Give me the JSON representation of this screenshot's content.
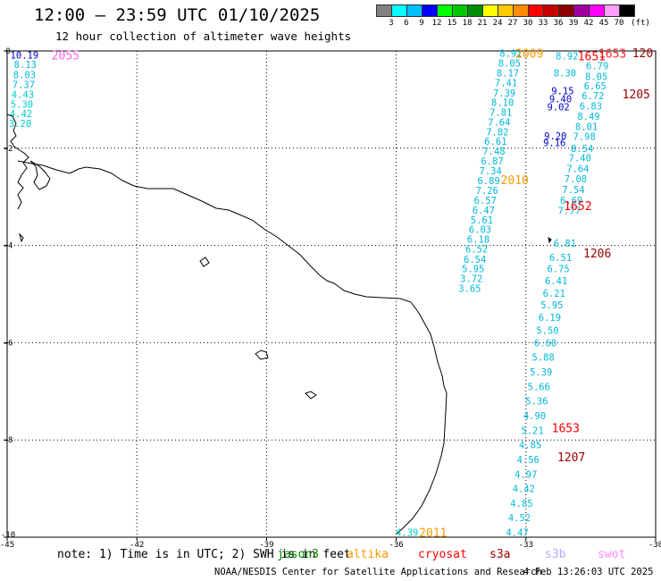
{
  "title": "12:00 – 23:59 UTC 01/10/2025",
  "subtitle": "12 hour collection of altimeter wave heights",
  "legend": {
    "unit": "(ft)",
    "levels": [
      "3",
      "6",
      "9",
      "12",
      "15",
      "18",
      "21",
      "24",
      "27",
      "30",
      "33",
      "36",
      "39",
      "42",
      "45",
      "70"
    ],
    "colors": [
      "#808080",
      "#00ffff",
      "#00bfff",
      "#0000ff",
      "#00ff00",
      "#00c800",
      "#008c00",
      "#ffff00",
      "#ffc800",
      "#ff8c00",
      "#ff0000",
      "#c80000",
      "#8c0000",
      "#a000a0",
      "#ff00ff",
      "#ffa0ff",
      "#000000"
    ]
  },
  "note": "note: 1) Time is in UTC; 2) SWH is in feet",
  "satellites": [
    {
      "name": "jason3",
      "color": "#008800"
    },
    {
      "name": "altika",
      "color": "#ff9900"
    },
    {
      "name": "cryosat",
      "color": "#ff0000"
    },
    {
      "name": "s3a",
      "color": "#990000"
    },
    {
      "name": "s3b",
      "color": "#aaaaff"
    },
    {
      "name": "swot",
      "color": "#ff88ff"
    }
  ],
  "credit": "NOAA/NESDIS Center for Satellite Applications and Research",
  "timestamp": "4 Feb 13:26:03 UTC 2025",
  "chart_data": {
    "type": "scatter",
    "xlim": [
      -45,
      -30
    ],
    "ylim": [
      -10,
      0
    ],
    "x_ticks": [
      -45,
      -42,
      -39,
      -36,
      -33,
      -30
    ],
    "x_tick_labels": [
      "-45",
      "-42",
      "-39",
      "-36",
      "-33",
      "-30"
    ],
    "y_ticks": [
      0,
      -2,
      -4,
      -6,
      -8,
      -10
    ],
    "y_tick_labels": [
      "0",
      "-2",
      "-4",
      "-6",
      "-8",
      "-10"
    ],
    "grid": true,
    "point_labels": [
      {
        "x": -44.6,
        "y": -0.08,
        "text": "10.19",
        "color": "#0000cc"
      },
      {
        "x": -44.58,
        "y": -0.28,
        "text": "8.13",
        "color": "#00b8d8"
      },
      {
        "x": -44.6,
        "y": -0.49,
        "text": "8.03",
        "color": "#00b8d8"
      },
      {
        "x": -44.62,
        "y": -0.69,
        "text": "7.37",
        "color": "#00b8d8"
      },
      {
        "x": -44.64,
        "y": -0.89,
        "text": "4.43",
        "color": "#00cccc"
      },
      {
        "x": -44.66,
        "y": -1.09,
        "text": "5.30",
        "color": "#00cccc"
      },
      {
        "x": -44.68,
        "y": -1.29,
        "text": "4.42",
        "color": "#00cccc"
      },
      {
        "x": -44.7,
        "y": -1.49,
        "text": "3.20",
        "color": "#00cccc"
      },
      {
        "x": -33.35,
        "y": -0.05,
        "text": "8.91",
        "color": "#00b8d8"
      },
      {
        "x": -33.38,
        "y": -0.25,
        "text": "8.05",
        "color": "#00b8d8"
      },
      {
        "x": -33.42,
        "y": -0.45,
        "text": "8.17",
        "color": "#00b8d8"
      },
      {
        "x": -33.46,
        "y": -0.65,
        "text": "7.41",
        "color": "#00b8d8"
      },
      {
        "x": -33.5,
        "y": -0.86,
        "text": "7.39",
        "color": "#00b8d8"
      },
      {
        "x": -33.54,
        "y": -1.06,
        "text": "8.10",
        "color": "#00b8d8"
      },
      {
        "x": -33.58,
        "y": -1.26,
        "text": "7.81",
        "color": "#00b8d8"
      },
      {
        "x": -33.62,
        "y": -1.46,
        "text": "7.64",
        "color": "#00b8d8"
      },
      {
        "x": -33.66,
        "y": -1.66,
        "text": "7.82",
        "color": "#00b8d8"
      },
      {
        "x": -33.7,
        "y": -1.86,
        "text": "6.61",
        "color": "#00b8d8"
      },
      {
        "x": -33.74,
        "y": -2.06,
        "text": "7.48",
        "color": "#00b8d8"
      },
      {
        "x": -33.78,
        "y": -2.26,
        "text": "6.87",
        "color": "#00b8d8"
      },
      {
        "x": -33.82,
        "y": -2.46,
        "text": "7.34",
        "color": "#00b8d8"
      },
      {
        "x": -33.86,
        "y": -2.67,
        "text": "6.89",
        "color": "#00b8d8"
      },
      {
        "x": -33.9,
        "y": -2.87,
        "text": "7.26",
        "color": "#00b8d8"
      },
      {
        "x": -33.94,
        "y": -3.07,
        "text": "6.57",
        "color": "#00b8d8"
      },
      {
        "x": -33.98,
        "y": -3.27,
        "text": "6.47",
        "color": "#00b8d8"
      },
      {
        "x": -34.02,
        "y": -3.47,
        "text": "5.61",
        "color": "#00b8d8"
      },
      {
        "x": -34.06,
        "y": -3.67,
        "text": "6.03",
        "color": "#00b8d8"
      },
      {
        "x": -34.1,
        "y": -3.87,
        "text": "6.18",
        "color": "#00b8d8"
      },
      {
        "x": -34.14,
        "y": -4.07,
        "text": "6.52",
        "color": "#00b8d8"
      },
      {
        "x": -34.18,
        "y": -4.28,
        "text": "6.54",
        "color": "#00b8d8"
      },
      {
        "x": -34.22,
        "y": -4.48,
        "text": "5.95",
        "color": "#00b8d8"
      },
      {
        "x": -34.26,
        "y": -4.68,
        "text": "3.72",
        "color": "#00b8d8"
      },
      {
        "x": -34.3,
        "y": -4.88,
        "text": "3.65",
        "color": "#00b8d8"
      },
      {
        "x": -32.05,
        "y": -0.1,
        "text": "8.92",
        "color": "#00b8d8"
      },
      {
        "x": -32.1,
        "y": -0.45,
        "text": "8.30",
        "color": "#00b8d8"
      },
      {
        "x": -32.15,
        "y": -0.82,
        "text": "9.15",
        "color": "#0000cc"
      },
      {
        "x": -32.2,
        "y": -0.98,
        "text": "9.40",
        "color": "#0000cc"
      },
      {
        "x": -32.25,
        "y": -1.15,
        "text": "9.02",
        "color": "#0000cc"
      },
      {
        "x": -32.32,
        "y": -1.75,
        "text": "9.20",
        "color": "#0000cc"
      },
      {
        "x": -32.34,
        "y": -1.88,
        "text": "9.16",
        "color": "#0000cc"
      },
      {
        "x": -31.35,
        "y": -0.3,
        "text": "6.79",
        "color": "#00b8d8"
      },
      {
        "x": -31.37,
        "y": -0.52,
        "text": "8.05",
        "color": "#00b8d8"
      },
      {
        "x": -31.4,
        "y": -0.72,
        "text": "6.65",
        "color": "#00b8d8"
      },
      {
        "x": -31.45,
        "y": -0.92,
        "text": "6.72",
        "color": "#00b8d8"
      },
      {
        "x": -31.5,
        "y": -1.13,
        "text": "6.83",
        "color": "#00b8d8"
      },
      {
        "x": -31.55,
        "y": -1.34,
        "text": "8.49",
        "color": "#00b8d8"
      },
      {
        "x": -31.6,
        "y": -1.55,
        "text": "8.01",
        "color": "#00b8d8"
      },
      {
        "x": -31.65,
        "y": -1.76,
        "text": "7.98",
        "color": "#00b8d8"
      },
      {
        "x": -31.7,
        "y": -2.0,
        "text": "8.54",
        "color": "#00b8d8"
      },
      {
        "x": -31.75,
        "y": -2.2,
        "text": "7.40",
        "color": "#00b8d8"
      },
      {
        "x": -31.8,
        "y": -2.42,
        "text": "7.64",
        "color": "#00b8d8"
      },
      {
        "x": -31.85,
        "y": -2.63,
        "text": "7.08",
        "color": "#00b8d8"
      },
      {
        "x": -31.9,
        "y": -2.85,
        "text": "7.54",
        "color": "#00b8d8"
      },
      {
        "x": -31.95,
        "y": -3.07,
        "text": "6.69",
        "color": "#00b8d8"
      },
      {
        "x": -32.0,
        "y": -3.28,
        "text": "7.77",
        "color": "#00b8d8"
      },
      {
        "x": -32.1,
        "y": -3.95,
        "text": "6.81",
        "color": "#00b8d8"
      },
      {
        "x": -32.2,
        "y": -4.25,
        "text": "6.51",
        "color": "#00b8d8"
      },
      {
        "x": -32.25,
        "y": -4.48,
        "text": "6.75",
        "color": "#00b8d8"
      },
      {
        "x": -32.3,
        "y": -4.72,
        "text": "6.41",
        "color": "#00b8d8"
      },
      {
        "x": -32.35,
        "y": -4.98,
        "text": "6.21",
        "color": "#00b8d8"
      },
      {
        "x": -32.4,
        "y": -5.22,
        "text": "5.95",
        "color": "#00b8d8"
      },
      {
        "x": -32.45,
        "y": -5.48,
        "text": "6.19",
        "color": "#00b8d8"
      },
      {
        "x": -32.5,
        "y": -5.74,
        "text": "5.50",
        "color": "#00b8d8"
      },
      {
        "x": -32.55,
        "y": -6.0,
        "text": "6.60",
        "color": "#00b8d8"
      },
      {
        "x": -32.6,
        "y": -6.3,
        "text": "5.88",
        "color": "#00b8d8"
      },
      {
        "x": -32.65,
        "y": -6.6,
        "text": "5.39",
        "color": "#00b8d8"
      },
      {
        "x": -32.7,
        "y": -6.9,
        "text": "5.66",
        "color": "#00b8d8"
      },
      {
        "x": -32.75,
        "y": -7.2,
        "text": "5.36",
        "color": "#00b8d8"
      },
      {
        "x": -32.8,
        "y": -7.5,
        "text": "4.90",
        "color": "#00b8d8"
      },
      {
        "x": -32.85,
        "y": -7.8,
        "text": "5.21",
        "color": "#00b8d8"
      },
      {
        "x": -32.9,
        "y": -8.1,
        "text": "4.85",
        "color": "#00b8d8"
      },
      {
        "x": -32.95,
        "y": -8.4,
        "text": "4.56",
        "color": "#00b8d8"
      },
      {
        "x": -33.0,
        "y": -8.7,
        "text": "4.97",
        "color": "#00b8d8"
      },
      {
        "x": -33.05,
        "y": -9.0,
        "text": "4.42",
        "color": "#00b8d8"
      },
      {
        "x": -33.1,
        "y": -9.3,
        "text": "4.85",
        "color": "#00b8d8"
      },
      {
        "x": -33.15,
        "y": -9.6,
        "text": "4.52",
        "color": "#00b8d8"
      },
      {
        "x": -33.2,
        "y": -9.9,
        "text": "4.47",
        "color": "#00b8d8"
      },
      {
        "x": -35.75,
        "y": -9.9,
        "text": "4.39",
        "color": "#00cccc"
      }
    ],
    "pass_labels": [
      {
        "x": -43.65,
        "y": -0.08,
        "text": "2055",
        "color": "#ff66dd"
      },
      {
        "x": -32.92,
        "y": -0.05,
        "text": "2009",
        "color": "#ff9900"
      },
      {
        "x": -33.26,
        "y": -2.65,
        "text": "2010",
        "color": "#ff9900"
      },
      {
        "x": -35.15,
        "y": -9.9,
        "text": "2011",
        "color": "#ff9900"
      },
      {
        "x": -31.0,
        "y": -0.05,
        "text": "1653",
        "color": "#ff2222"
      },
      {
        "x": -31.48,
        "y": -0.1,
        "text": "1651",
        "color": "#ff0000"
      },
      {
        "x": -31.8,
        "y": -3.18,
        "text": "1652",
        "color": "#ff0000"
      },
      {
        "x": -32.08,
        "y": -7.75,
        "text": "1653",
        "color": "#ff0000"
      },
      {
        "x": -30.3,
        "y": -0.04,
        "text": "120",
        "color": "#990000"
      },
      {
        "x": -30.45,
        "y": -0.88,
        "text": "1205",
        "color": "#990000"
      },
      {
        "x": -31.35,
        "y": -4.15,
        "text": "1206",
        "color": "#990000"
      },
      {
        "x": -31.95,
        "y": -8.35,
        "text": "1207",
        "color": "#990000"
      }
    ]
  }
}
